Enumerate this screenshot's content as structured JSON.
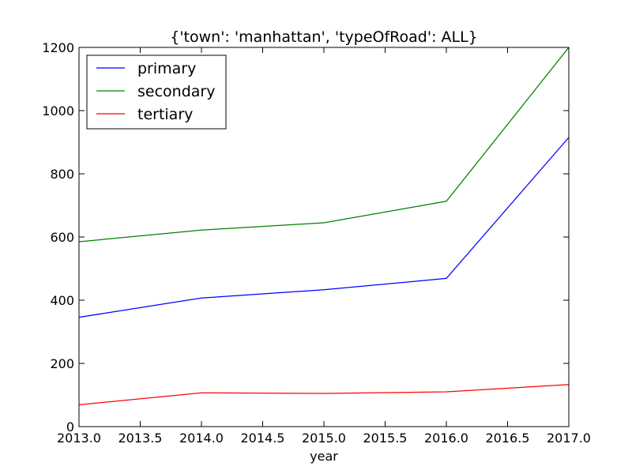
{
  "chart_data": {
    "type": "line",
    "title": "{'town': 'manhattan', 'typeOfRoad': ALL}",
    "xlabel": "year",
    "ylabel": "",
    "x": [
      2013.0,
      2014.0,
      2015.0,
      2016.0,
      2017.0
    ],
    "xlim": [
      2013.0,
      2017.0
    ],
    "ylim": [
      0,
      1200
    ],
    "xticks": [
      2013.0,
      2013.5,
      2014.0,
      2014.5,
      2015.0,
      2015.5,
      2016.0,
      2016.5,
      2017.0
    ],
    "xtick_labels": [
      "2013.0",
      "2013.5",
      "2014.0",
      "2014.5",
      "2015.0",
      "2015.5",
      "2016.0",
      "2016.5",
      "2017.0"
    ],
    "yticks": [
      0,
      200,
      400,
      600,
      800,
      1000,
      1200
    ],
    "ytick_labels": [
      "0",
      "200",
      "400",
      "600",
      "800",
      "1000",
      "1200"
    ],
    "grid": false,
    "legend_position": "top-left",
    "series": [
      {
        "name": "primary",
        "color": "#0000ff",
        "values": [
          346,
          407,
          433,
          469,
          915
        ]
      },
      {
        "name": "secondary",
        "color": "#008000",
        "values": [
          585,
          622,
          645,
          713,
          1200
        ]
      },
      {
        "name": "tertiary",
        "color": "#ff0000",
        "values": [
          69,
          107,
          105,
          110,
          133
        ]
      }
    ]
  }
}
